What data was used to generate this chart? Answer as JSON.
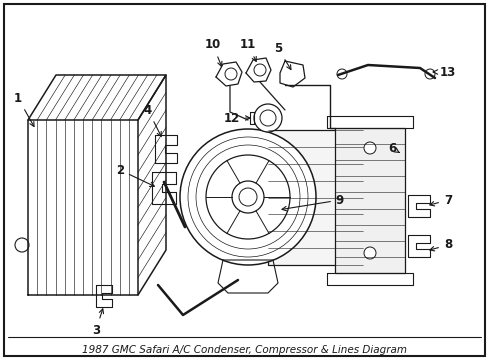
{
  "title": "1987 GMC Safari A/C Condenser, Compressor & Lines Diagram",
  "background_color": "#ffffff",
  "line_color": "#1a1a1a",
  "figsize": [
    4.89,
    3.6
  ],
  "dpi": 100,
  "label_fontsize": 8.5,
  "title_fontsize": 7.5
}
